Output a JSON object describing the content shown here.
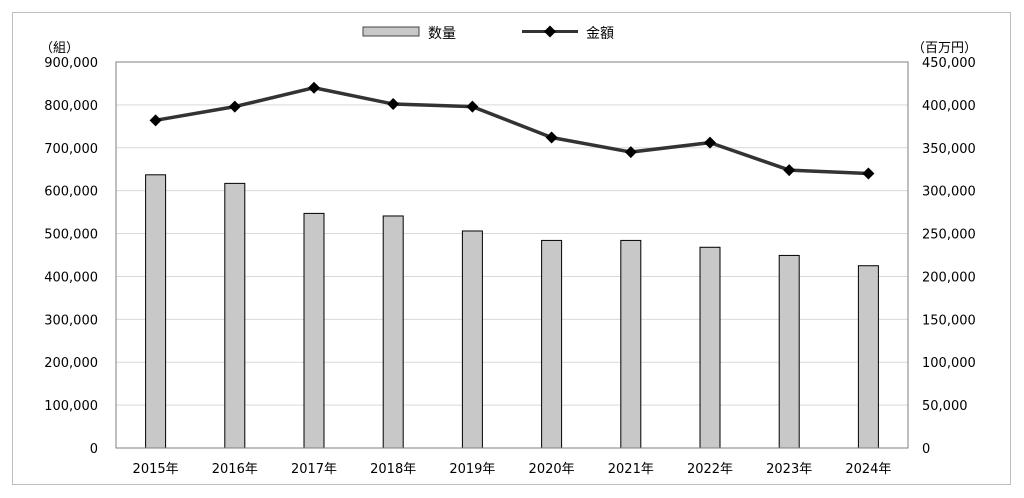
{
  "chart_data": {
    "type": "bar",
    "categories": [
      "2015年",
      "2016年",
      "2017年",
      "2018年",
      "2019年",
      "2020年",
      "2021年",
      "2022年",
      "2023年",
      "2024年"
    ],
    "series": [
      {
        "name": "数量",
        "type": "bar",
        "axis": "left",
        "color": "#c8c8c8",
        "values": [
          637000,
          617000,
          547000,
          541000,
          506000,
          484000,
          484000,
          468000,
          449000,
          425000
        ]
      },
      {
        "name": "金額",
        "type": "line",
        "axis": "right",
        "color": "#333333",
        "values": [
          382000,
          398000,
          420000,
          401000,
          398000,
          362000,
          345000,
          356000,
          324000,
          320000
        ]
      }
    ],
    "y_left": {
      "unit": "（組）",
      "ylim": [
        0,
        900000
      ],
      "ticks": [
        "0",
        "100,000",
        "200,000",
        "300,000",
        "400,000",
        "500,000",
        "600,000",
        "700,000",
        "800,000",
        "900,000"
      ]
    },
    "y_right": {
      "unit": "（百万円）",
      "ylim": [
        0,
        450000
      ],
      "ticks": [
        "0",
        "50,000",
        "100,000",
        "150,000",
        "200,000",
        "250,000",
        "300,000",
        "350,000",
        "400,000",
        "450,000"
      ]
    },
    "grid": true,
    "legend": "top-center"
  }
}
